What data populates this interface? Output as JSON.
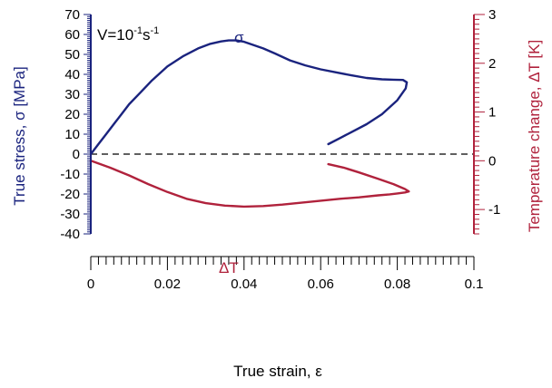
{
  "chart_data": {
    "type": "line",
    "title": "",
    "annotation": {
      "base": "V=10",
      "exp1": "-1",
      "unit": "s",
      "exp2": "-1"
    },
    "xlabel": "True strain, ε",
    "ylabel_left": "True stress, σ [MPa]",
    "ylabel_right": "Temperature change, ΔT [K]",
    "xlim": [
      0,
      0.1
    ],
    "ylim_left": [
      -40,
      70
    ],
    "ylim_right": [
      -1.5,
      3
    ],
    "x_ticks": [
      "0",
      "0.02",
      "0.04",
      "0.06",
      "0.08",
      "0.1"
    ],
    "y_left_ticks": [
      "-40",
      "-30",
      "-20",
      "-10",
      "0",
      "10",
      "20",
      "30",
      "40",
      "50",
      "60",
      "70"
    ],
    "y_right_ticks": [
      "-1",
      "0",
      "1",
      "2",
      "3"
    ],
    "colors": {
      "stress": "#1a237e",
      "temperature": "#b0223c",
      "zero_line": "#000000"
    },
    "series": [
      {
        "name": "σ",
        "axis": "left",
        "x": [
          0,
          0.002,
          0.004,
          0.006,
          0.008,
          0.01,
          0.013,
          0.016,
          0.02,
          0.024,
          0.028,
          0.031,
          0.034,
          0.036,
          0.038,
          0.04,
          0.042,
          0.045,
          0.048,
          0.052,
          0.056,
          0.06,
          0.064,
          0.068,
          0.072,
          0.076,
          0.079,
          0.0815,
          0.0825,
          0.0822,
          0.08,
          0.076,
          0.072,
          0.068,
          0.065,
          0.062
        ],
        "y": [
          0,
          5,
          10,
          15,
          20,
          25,
          31,
          37,
          44,
          49,
          53,
          55.2,
          56.5,
          57,
          57,
          56.3,
          55,
          53,
          50.5,
          47,
          44.5,
          42.5,
          41,
          39.5,
          38.2,
          37.5,
          37.3,
          37.2,
          36,
          33,
          27,
          20,
          15,
          11,
          8,
          5
        ]
      },
      {
        "name": "ΔT",
        "axis": "right",
        "x": [
          0,
          0.005,
          0.01,
          0.015,
          0.02,
          0.025,
          0.03,
          0.035,
          0.04,
          0.045,
          0.05,
          0.055,
          0.06,
          0.065,
          0.07,
          0.075,
          0.078,
          0.08,
          0.082,
          0.083,
          0.082,
          0.079,
          0.075,
          0.07,
          0.066,
          0.062
        ],
        "y": [
          0,
          -0.14,
          -0.3,
          -0.48,
          -0.64,
          -0.78,
          -0.87,
          -0.92,
          -0.94,
          -0.93,
          -0.9,
          -0.86,
          -0.82,
          -0.78,
          -0.75,
          -0.71,
          -0.69,
          -0.67,
          -0.65,
          -0.63,
          -0.58,
          -0.48,
          -0.37,
          -0.24,
          -0.14,
          -0.07
        ]
      }
    ],
    "series_labels": {
      "sigma": "σ",
      "deltaT": "ΔT"
    }
  }
}
